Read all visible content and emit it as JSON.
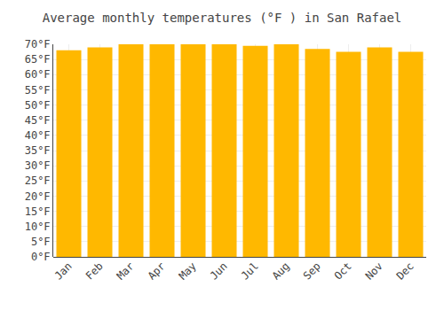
{
  "chart_data": {
    "type": "bar",
    "title": "Average monthly temperatures (°F ) in San Rafael",
    "categories": [
      "Jan",
      "Feb",
      "Mar",
      "Apr",
      "May",
      "Jun",
      "Jul",
      "Aug",
      "Sep",
      "Oct",
      "Nov",
      "Dec"
    ],
    "values": [
      68.0,
      69.0,
      70.0,
      70.0,
      70.0,
      70.0,
      69.5,
      70.0,
      68.5,
      67.5,
      69.0,
      67.5
    ],
    "color": "#FFB800",
    "ylim": [
      0,
      70
    ],
    "yticks": [
      {
        "value": 0,
        "label": "0°F"
      },
      {
        "value": 5,
        "label": "5°F"
      },
      {
        "value": 10,
        "label": "10°F"
      },
      {
        "value": 15,
        "label": "15°F"
      },
      {
        "value": 20,
        "label": "20°F"
      },
      {
        "value": 25,
        "label": "25°F"
      },
      {
        "value": 30,
        "label": "30°F"
      },
      {
        "value": 35,
        "label": "35°F"
      },
      {
        "value": 40,
        "label": "40°F"
      },
      {
        "value": 45,
        "label": "45°F"
      },
      {
        "value": 50,
        "label": "50°F"
      },
      {
        "value": 55,
        "label": "55°F"
      },
      {
        "value": 60,
        "label": "60°F"
      },
      {
        "value": 65,
        "label": "65°F"
      },
      {
        "value": 70,
        "label": "70°F"
      }
    ],
    "grid": true
  }
}
